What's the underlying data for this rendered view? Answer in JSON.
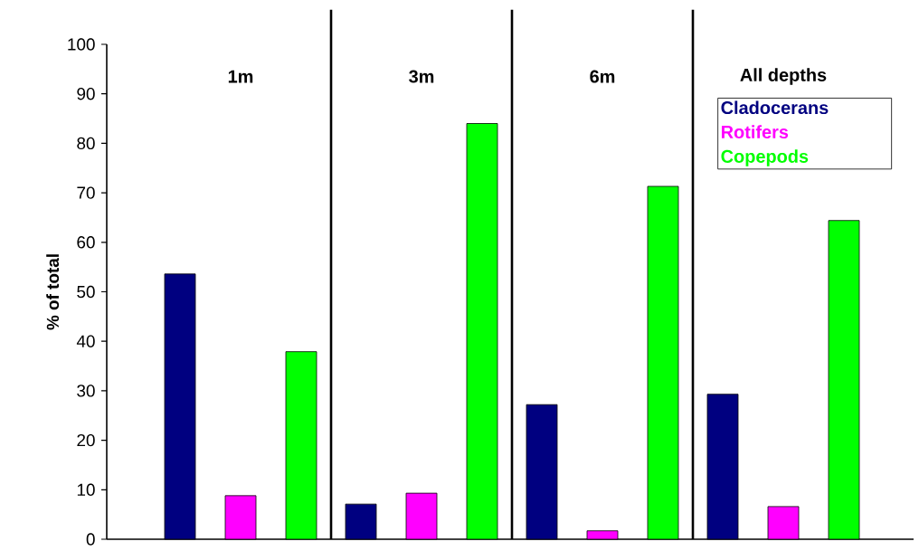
{
  "chart_data": {
    "type": "bar",
    "ylabel": "% of total",
    "categories": [
      "1m",
      "3m",
      "6m",
      "All depths"
    ],
    "series": [
      {
        "name": "Cladocerans",
        "color": "#000080",
        "values": [
          53.6,
          7.1,
          27.2,
          29.3
        ]
      },
      {
        "name": "Rotifers",
        "color": "#ff00ff",
        "values": [
          8.8,
          9.3,
          1.7,
          6.6
        ]
      },
      {
        "name": "Copepods",
        "color": "#00ff00",
        "values": [
          37.9,
          84,
          71.3,
          64.4
        ]
      }
    ],
    "ylim": [
      0,
      100
    ],
    "yticks": [
      0,
      10,
      20,
      30,
      40,
      50,
      60,
      70,
      80,
      90,
      100
    ],
    "legend": "top right"
  }
}
